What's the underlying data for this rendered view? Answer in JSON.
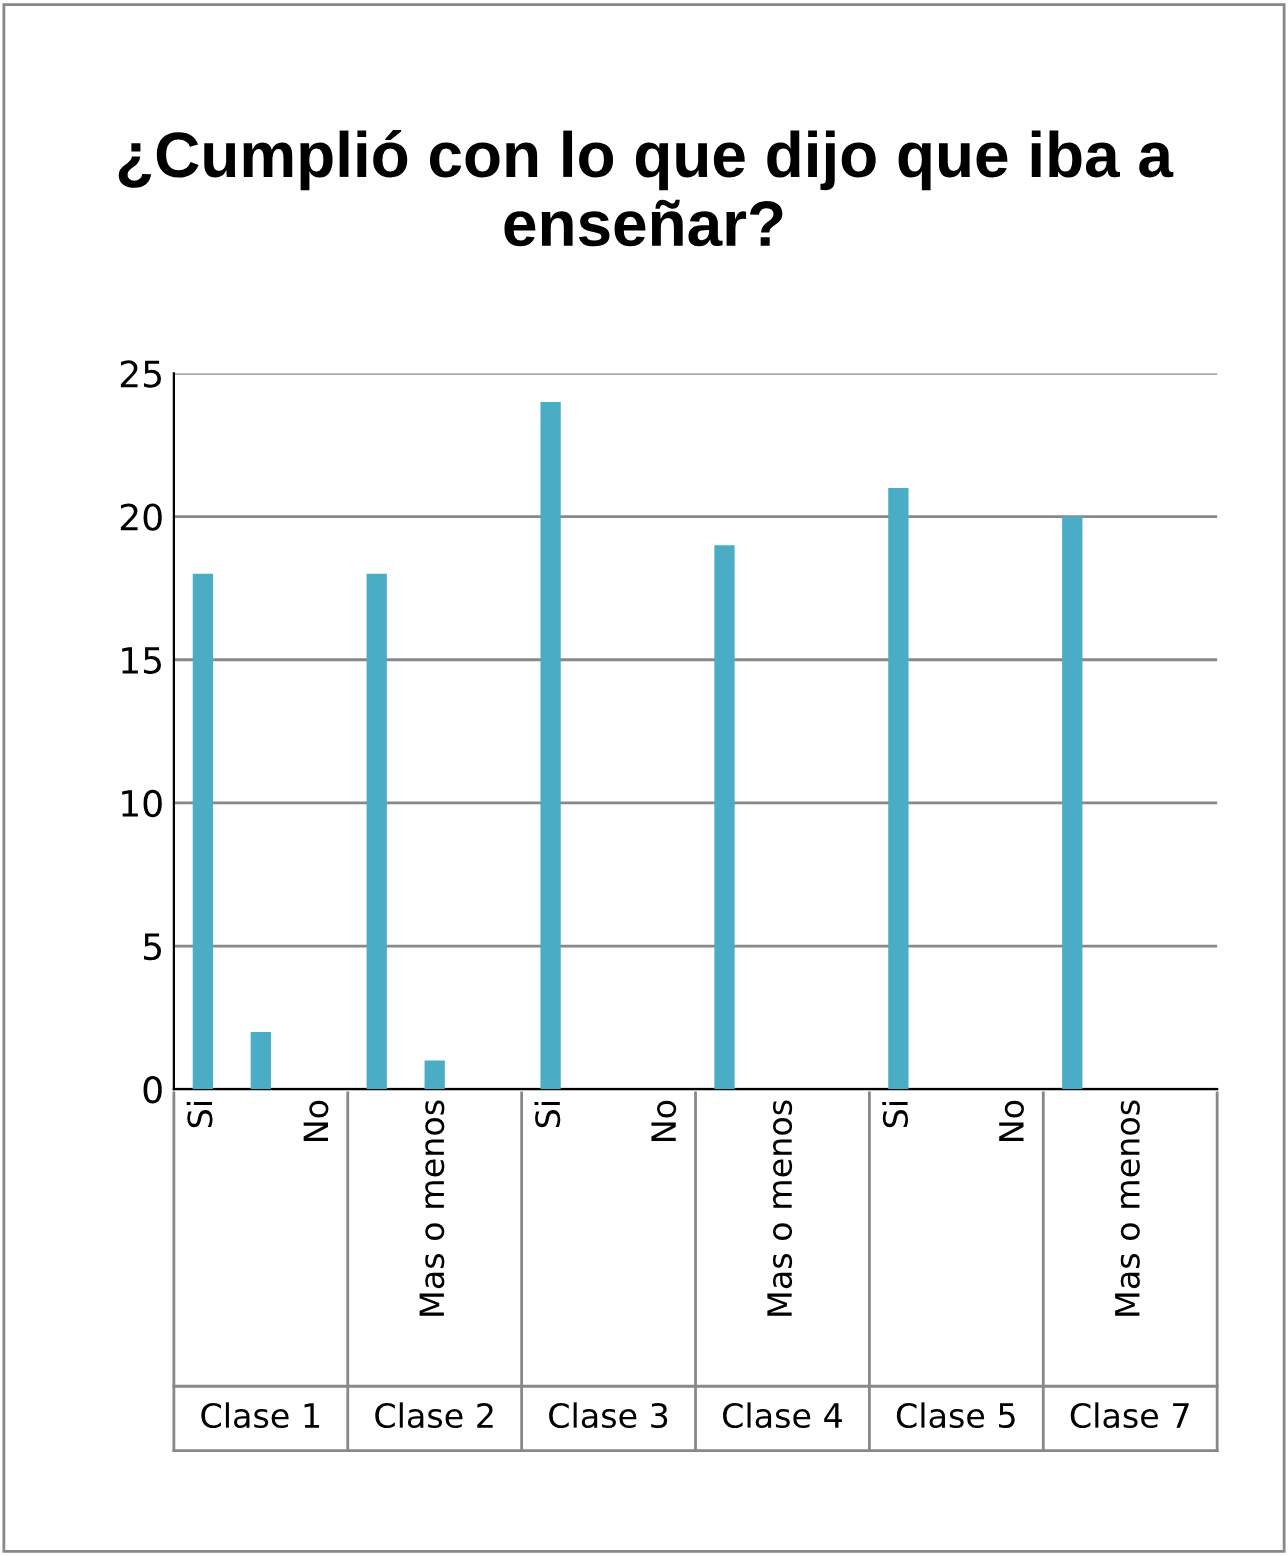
{
  "chart_data": {
    "type": "bar",
    "title": "¿Cumplió con lo que dijo que iba a enseñar?",
    "categories": [
      "Si",
      null,
      "No",
      null,
      "Mas o menos",
      null,
      "Si",
      null,
      "No",
      null,
      "Mas o menos",
      null,
      "Si",
      null,
      "No",
      null,
      "Mas o menos",
      null
    ],
    "values": [
      18,
      2,
      0,
      18,
      1,
      0,
      24,
      0,
      0,
      19,
      0,
      0,
      21,
      0,
      0,
      20,
      0,
      0
    ],
    "color": "#4bacc6",
    "annotations": [
      "Clase 1",
      "Clase 2",
      "Clase 3",
      "Clase 4",
      "Clase 5",
      "Clase 7"
    ],
    "ylim": [
      0,
      25
    ],
    "yticks": [
      0,
      5,
      10,
      15,
      20,
      25
    ],
    "grid": "y",
    "legend": false
  }
}
